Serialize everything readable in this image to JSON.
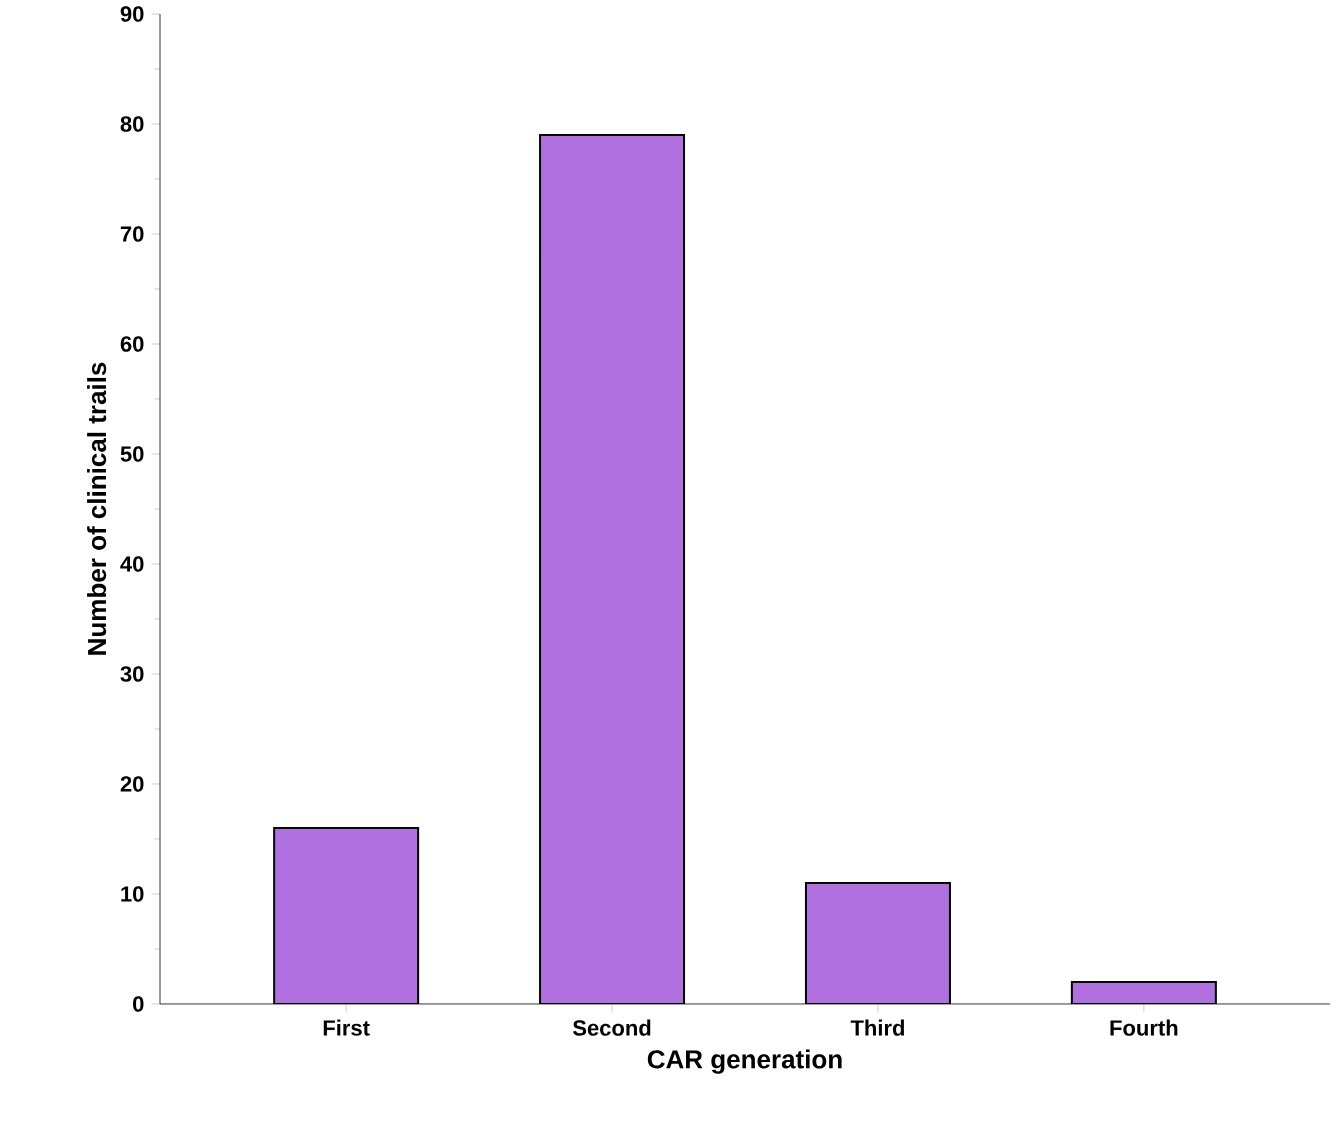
{
  "chart_data": {
    "type": "bar",
    "xlabel": "CAR generation",
    "ylabel": "Number of clinical trails",
    "categories": [
      "First",
      "Second",
      "Third",
      "Fourth"
    ],
    "values": [
      16,
      79,
      11,
      2
    ],
    "color": "#b070e0",
    "ylim": [
      0,
      90
    ],
    "yticks": [
      0,
      10,
      20,
      30,
      40,
      50,
      60,
      70,
      80,
      90
    ]
  }
}
